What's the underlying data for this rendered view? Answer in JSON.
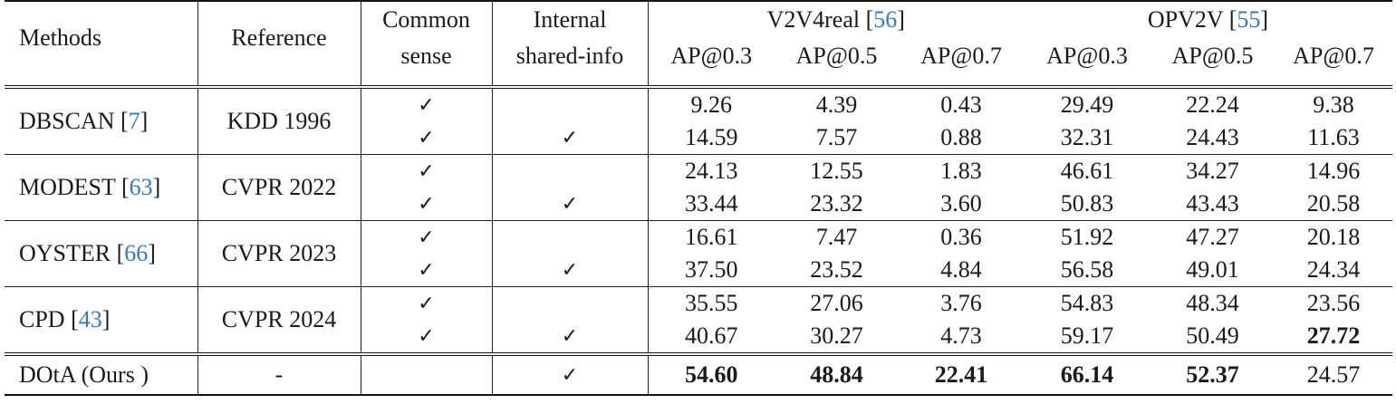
{
  "header": {
    "methods": "Methods",
    "reference": "Reference",
    "common_sense_1": "Common",
    "common_sense_2": "sense",
    "internal_1": "Internal",
    "internal_2": "shared-info",
    "group1_name": "V2V4real",
    "group1_cite": "56",
    "group2_name": "OPV2V",
    "group2_cite": "55",
    "metrics": [
      "AP@0.3",
      "AP@0.5",
      "AP@0.7",
      "AP@0.3",
      "AP@0.5",
      "AP@0.7"
    ]
  },
  "check": "✓",
  "groups": [
    {
      "method": "DBSCAN",
      "cite": "7",
      "reference": "KDD 1996",
      "rows": [
        {
          "common": true,
          "internal": false,
          "values": [
            "9.26",
            "4.39",
            "0.43",
            "29.49",
            "22.24",
            "9.38"
          ]
        },
        {
          "common": true,
          "internal": true,
          "values": [
            "14.59",
            "7.57",
            "0.88",
            "32.31",
            "24.43",
            "11.63"
          ]
        }
      ]
    },
    {
      "method": "MODEST",
      "cite": "63",
      "reference": "CVPR 2022",
      "rows": [
        {
          "common": true,
          "internal": false,
          "values": [
            "24.13",
            "12.55",
            "1.83",
            "46.61",
            "34.27",
            "14.96"
          ]
        },
        {
          "common": true,
          "internal": true,
          "values": [
            "33.44",
            "23.32",
            "3.60",
            "50.83",
            "43.43",
            "20.58"
          ]
        }
      ]
    },
    {
      "method": "OYSTER",
      "cite": "66",
      "reference": "CVPR 2023",
      "rows": [
        {
          "common": true,
          "internal": false,
          "values": [
            "16.61",
            "7.47",
            "0.36",
            "51.92",
            "47.27",
            "20.18"
          ]
        },
        {
          "common": true,
          "internal": true,
          "values": [
            "37.50",
            "23.52",
            "4.84",
            "56.58",
            "49.01",
            "24.34"
          ]
        }
      ]
    },
    {
      "method": "CPD",
      "cite": "43",
      "reference": "CVPR 2024",
      "rows": [
        {
          "common": true,
          "internal": false,
          "values": [
            "35.55",
            "27.06",
            "3.76",
            "54.83",
            "48.34",
            "23.56"
          ]
        },
        {
          "common": true,
          "internal": true,
          "values": [
            "40.67",
            "30.27",
            "4.73",
            "59.17",
            "50.49",
            "27.72"
          ]
        }
      ]
    }
  ],
  "bold_cells": [
    [
      3,
      1,
      5
    ]
  ],
  "ours": {
    "method": "DOtA (Ours )",
    "reference": "-",
    "common": false,
    "internal": true,
    "values": [
      "54.60",
      "48.84",
      "22.41",
      "66.14",
      "52.37",
      "24.57"
    ],
    "bold": [
      true,
      true,
      true,
      true,
      true,
      false
    ]
  }
}
